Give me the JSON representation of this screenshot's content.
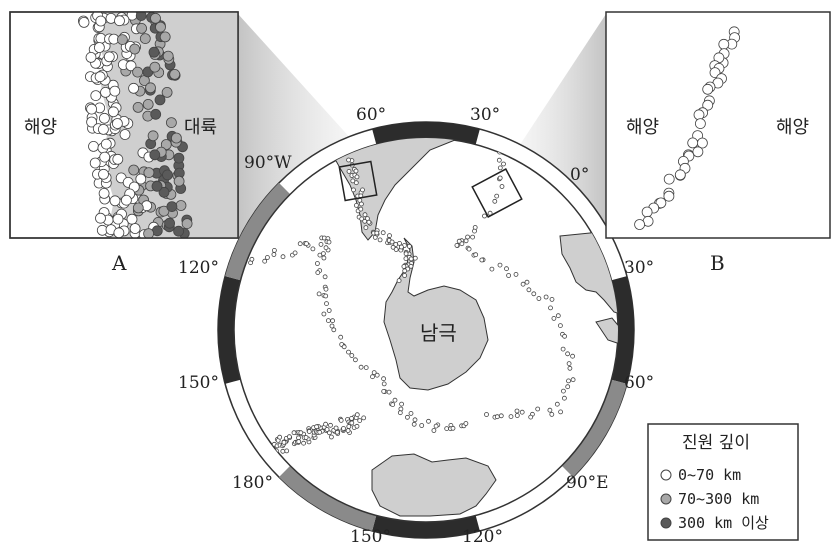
{
  "map": {
    "center_label": "남극",
    "longitude_labels": {
      "lon_60_top": "60°",
      "lon_30_top": "30°",
      "lon_0": "0°",
      "lon_90w": "90°W",
      "lon_120_left": "120°",
      "lon_30_right": "30°",
      "lon_150_left": "150°",
      "lon_60_right": "60°",
      "lon_180": "180°",
      "lon_90e": "90°E",
      "lon_150_bottom": "150°",
      "lon_120_bottom": "120°"
    }
  },
  "inset_a": {
    "label": "A",
    "left_text": "해양",
    "right_text": "대륙"
  },
  "inset_b": {
    "label": "B",
    "left_text": "해양",
    "right_text": "해양"
  },
  "legend": {
    "title": "진원 깊이",
    "items": [
      {
        "label": "0~70 km",
        "color": "#ffffff"
      },
      {
        "label": "70~300 km",
        "color": "#a8a8a8"
      },
      {
        "label": "300 km 이상",
        "color": "#5a5a5a"
      }
    ]
  },
  "colors": {
    "land": "#cfcfcf",
    "ring_dark": "#2c2c2c",
    "ring_mid": "#8a8a8a",
    "outline": "#333333"
  }
}
